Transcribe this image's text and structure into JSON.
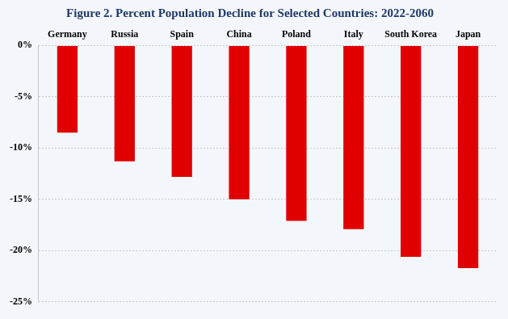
{
  "chart_data": {
    "type": "bar",
    "title": "Figure 2. Percent Population Decline for Selected Countries: 2022-2060",
    "categories": [
      "Germany",
      "Russia",
      "Spain",
      "China",
      "Poland",
      "Italy",
      "South Korea",
      "Japan"
    ],
    "values": [
      -8.5,
      -11.3,
      -12.8,
      -15.0,
      -17.1,
      -17.9,
      -20.6,
      -21.7
    ],
    "color": "#e00000",
    "ylim": [
      -25,
      0
    ],
    "yticks": [
      {
        "value": 0,
        "label": "0%"
      },
      {
        "value": -5,
        "label": "-5%"
      },
      {
        "value": -10,
        "label": "-10%"
      },
      {
        "value": -15,
        "label": "-15%"
      },
      {
        "value": -20,
        "label": "-20%"
      },
      {
        "value": -25,
        "label": "-25%"
      }
    ],
    "grid": true
  }
}
